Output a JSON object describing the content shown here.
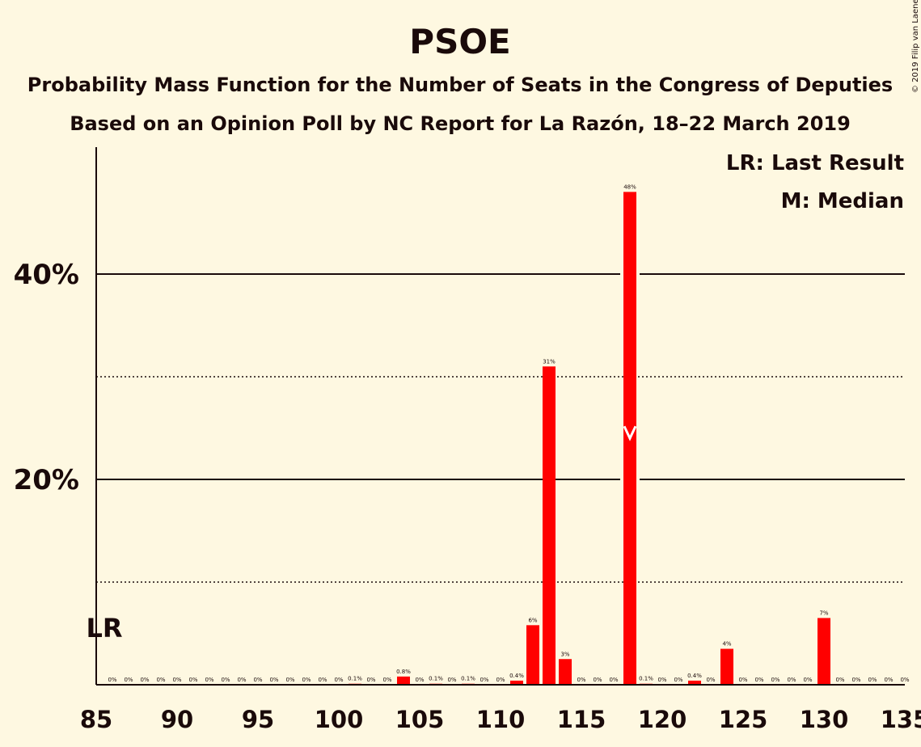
{
  "title": "PSOE",
  "subtitle1": "Probability Mass Function for the Number of Seats in the Congress of Deputies",
  "subtitle2": "Based on an Opinion Poll by NC Report for La Razón, 18–22 March 2019",
  "legend_lr": "LR: Last Result",
  "legend_m": "M: Median",
  "lr_marker": "LR",
  "median_marker": "M",
  "copyright": "© 2019 Filip van Laenen",
  "colors": {
    "bar": "#ff0000",
    "background": "#fef8e1",
    "text": "#1a0a0a",
    "median_marker": "#ffffff"
  },
  "chart_data": {
    "type": "bar",
    "title": "PSOE",
    "xlim": [
      85,
      135
    ],
    "ylim": [
      0,
      52
    ],
    "x_ticks": [
      85,
      90,
      95,
      100,
      105,
      110,
      115,
      120,
      125,
      130,
      135
    ],
    "y_ticks_labeled": [
      {
        "value": 20,
        "label": "20%"
      },
      {
        "value": 40,
        "label": "40%"
      }
    ],
    "y_gridlines_solid": [
      20,
      40
    ],
    "y_gridlines_dotted": [
      10,
      30
    ],
    "last_result": 85,
    "median": 118,
    "bars": [
      {
        "x": 86,
        "value": 0,
        "label": "0%"
      },
      {
        "x": 87,
        "value": 0,
        "label": "0%"
      },
      {
        "x": 88,
        "value": 0,
        "label": "0%"
      },
      {
        "x": 89,
        "value": 0,
        "label": "0%"
      },
      {
        "x": 90,
        "value": 0,
        "label": "0%"
      },
      {
        "x": 91,
        "value": 0,
        "label": "0%"
      },
      {
        "x": 92,
        "value": 0,
        "label": "0%"
      },
      {
        "x": 93,
        "value": 0,
        "label": "0%"
      },
      {
        "x": 94,
        "value": 0,
        "label": "0%"
      },
      {
        "x": 95,
        "value": 0,
        "label": "0%"
      },
      {
        "x": 96,
        "value": 0,
        "label": "0%"
      },
      {
        "x": 97,
        "value": 0,
        "label": "0%"
      },
      {
        "x": 98,
        "value": 0,
        "label": "0%"
      },
      {
        "x": 99,
        "value": 0,
        "label": "0%"
      },
      {
        "x": 100,
        "value": 0,
        "label": "0%"
      },
      {
        "x": 101,
        "value": 0.1,
        "label": "0.1%"
      },
      {
        "x": 102,
        "value": 0,
        "label": "0%"
      },
      {
        "x": 103,
        "value": 0,
        "label": "0%"
      },
      {
        "x": 104,
        "value": 0.8,
        "label": "0.8%"
      },
      {
        "x": 105,
        "value": 0,
        "label": "0%"
      },
      {
        "x": 106,
        "value": 0.1,
        "label": "0.1%"
      },
      {
        "x": 107,
        "value": 0,
        "label": "0%"
      },
      {
        "x": 108,
        "value": 0.1,
        "label": "0.1%"
      },
      {
        "x": 109,
        "value": 0,
        "label": "0%"
      },
      {
        "x": 110,
        "value": 0,
        "label": "0%"
      },
      {
        "x": 111,
        "value": 0.4,
        "label": "0.4%"
      },
      {
        "x": 112,
        "value": 5.8,
        "label": "6%"
      },
      {
        "x": 113,
        "value": 31,
        "label": "31%"
      },
      {
        "x": 114,
        "value": 2.5,
        "label": "3%"
      },
      {
        "x": 115,
        "value": 0,
        "label": "0%"
      },
      {
        "x": 116,
        "value": 0,
        "label": "0%"
      },
      {
        "x": 117,
        "value": 0,
        "label": "0%"
      },
      {
        "x": 118,
        "value": 48,
        "label": "48%"
      },
      {
        "x": 119,
        "value": 0.1,
        "label": "0.1%"
      },
      {
        "x": 120,
        "value": 0,
        "label": "0%"
      },
      {
        "x": 121,
        "value": 0,
        "label": "0%"
      },
      {
        "x": 122,
        "value": 0.4,
        "label": "0.4%"
      },
      {
        "x": 123,
        "value": 0,
        "label": "0%"
      },
      {
        "x": 124,
        "value": 3.5,
        "label": "4%"
      },
      {
        "x": 125,
        "value": 0,
        "label": "0%"
      },
      {
        "x": 126,
        "value": 0,
        "label": "0%"
      },
      {
        "x": 127,
        "value": 0,
        "label": "0%"
      },
      {
        "x": 128,
        "value": 0,
        "label": "0%"
      },
      {
        "x": 129,
        "value": 0,
        "label": "0%"
      },
      {
        "x": 130,
        "value": 6.5,
        "label": "7%"
      },
      {
        "x": 131,
        "value": 0,
        "label": "0%"
      },
      {
        "x": 132,
        "value": 0,
        "label": "0%"
      },
      {
        "x": 133,
        "value": 0,
        "label": "0%"
      },
      {
        "x": 134,
        "value": 0,
        "label": "0%"
      },
      {
        "x": 135,
        "value": 0,
        "label": "0%"
      }
    ]
  }
}
